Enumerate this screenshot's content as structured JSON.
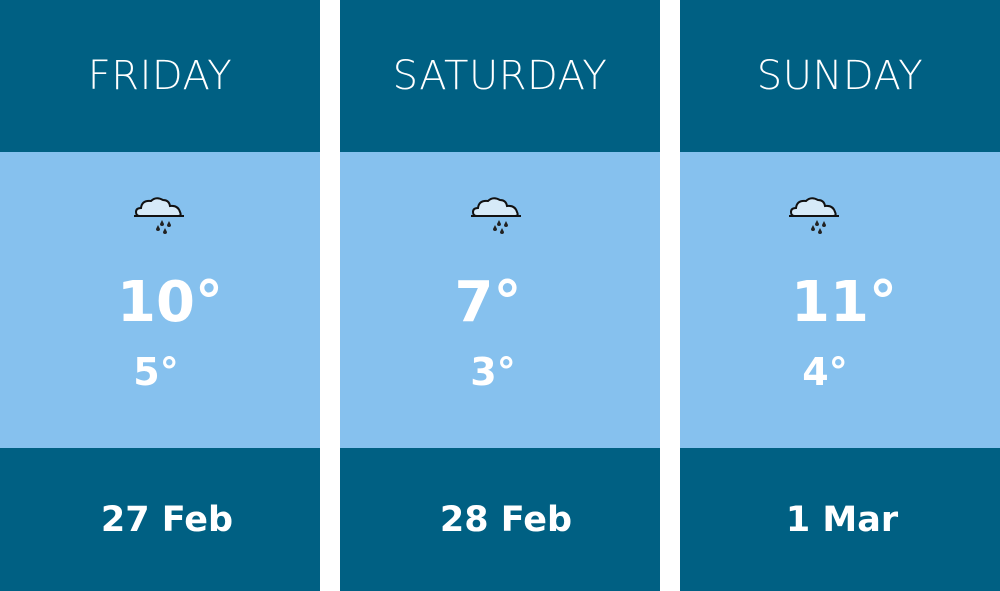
{
  "days": [
    {
      "day": "FRIDAY",
      "icon": "rain-cloud-icon",
      "high": "10°",
      "low": "5°",
      "date": "27 Feb"
    },
    {
      "day": "SATURDAY",
      "icon": "rain-cloud-icon",
      "high": "7°",
      "low": "3°",
      "date": "28 Feb"
    },
    {
      "day": "SUNDAY",
      "icon": "rain-cloud-icon",
      "high": "11°",
      "low": "4°",
      "date": "1 Mar"
    }
  ],
  "colors": {
    "header": "#006083",
    "body": "#86c1ee",
    "text": "#ffffff"
  }
}
